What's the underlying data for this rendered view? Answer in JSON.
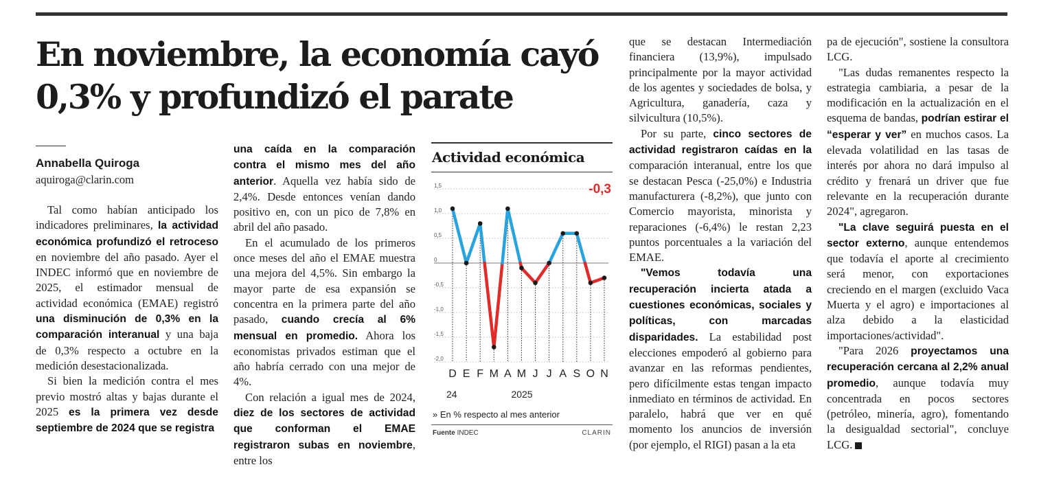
{
  "article": {
    "headline": "En noviembre, la economía cayó 0,3% y profundizó el parate",
    "author": "Annabella Quiroga",
    "email": "aquiroga@clarin.com"
  },
  "body": {
    "p1": [
      {
        "t": "Tal como habían anticipado los indicadores preliminares, "
      },
      {
        "t": "la actividad económica profundizó el retroceso",
        "b": true
      },
      {
        "t": " en noviembre del año pasado. Ayer el INDEC informó que en noviembre de 2025, el estimador mensual de actividad económica (EMAE) registró "
      },
      {
        "t": "una disminución de 0,3% en la comparación interanual",
        "b": true
      },
      {
        "t": " y una baja de 0,3% respecto a octubre en la medición desestacionalizada."
      }
    ],
    "p2": [
      {
        "t": "Si bien la medición contra el mes previo mostró altas y bajas durante el 2025 "
      },
      {
        "t": "es la primera vez desde septiembre de 2024 que se registra una caída en la comparación contra el mismo mes del año anterior",
        "b": true
      },
      {
        "t": ". Aquella vez había sido de 2,4%. Desde entonces venían dando positivo en, con un pico de 7,8% en abril del año pasado."
      }
    ],
    "p3": [
      {
        "t": "En el acumulado de los primeros once meses del año el EMAE muestra una mejora del 4,5%. Sin embargo la mayor parte de esa expansión se concentra en la primera parte del año pasado, "
      },
      {
        "t": "cuando crecía al 6% mensual en promedio.",
        "b": true
      },
      {
        "t": " Ahora los economistas privados estiman que el año habría cerrado con una mejor de 4%."
      }
    ],
    "p4": [
      {
        "t": "Con relación a igual mes de 2024, "
      },
      {
        "t": "diez de los sectores de actividad que conforman el EMAE registraron subas en noviembre",
        "b": true
      },
      {
        "t": ", entre los que se destacan Intermediación financiera (13,9%), impulsado principalmente por la mayor actividad de los agentes y sociedades de bolsa, y Agricultura, ganadería, caza y silvicultura (10,5%)."
      }
    ],
    "p5": [
      {
        "t": "Por su parte, "
      },
      {
        "t": "cinco sectores de actividad registraron caídas en la",
        "b": true
      },
      {
        "t": " comparación interanual, entre los que se destacan Pesca (-25,0%) e Industria manufacturera (-8,2%), que junto con Comercio mayorista, minorista y reparaciones (-6,4%) le restan 2,23 puntos porcentuales a la variación del EMAE."
      }
    ],
    "p6": [
      {
        "t": "\"Vemos todavía una recuperación incierta atada a cuestiones económicas, sociales y políticas, con marcadas disparidades.",
        "b": true
      },
      {
        "t": " La estabilidad post elecciones empoderó al gobierno para avanzar en las reformas pendientes, pero difícilmente estas tengan impacto inmediato en términos de actividad. En paralelo, habrá que ver en qué momento los anuncios de inversión (por ejemplo, el RIGI) pasan a la etapa de ejecución\", sostiene la consultora LCG."
      }
    ],
    "p7": [
      {
        "t": "\"Las dudas remanentes respecto la estrategia cambiaria, a pesar de la modificación en la actualización en el esquema de bandas, "
      },
      {
        "t": "podrían estirar el “esperar y ver”",
        "b": true
      },
      {
        "t": " en muchos casos. La elevada volatilidad en las tasas de interés por ahora no dará impulso al crédito y frenará un driver que fue relevante en la recuperación durante 2024\", agregaron."
      }
    ],
    "p8": [
      {
        "t": "\"La clave seguirá puesta en el sector externo",
        "b": true
      },
      {
        "t": ", aunque entendemos que todavía el aporte al crecimiento será menor, con exportaciones creciendo en el margen (excluido Vaca Muerta y el agro) e importaciones al alza debido a la elasticidad importaciones/actividad\"."
      }
    ],
    "p9": [
      {
        "t": "\"Para 2026 "
      },
      {
        "t": "proyectamos una recuperación cercana al 2,2% anual promedio",
        "b": true
      },
      {
        "t": ", aunque todavía muy concentrada en pocos sectores (petróleo, minería, agro), fomentando la desigualdad sectorial\", concluye LCG."
      }
    ]
  },
  "chart": {
    "title": "Actividad económica",
    "highlight_label": "-0,3",
    "note": "» En % respecto al mes anterior",
    "source_label": "Fuente",
    "source_value": "INDEC",
    "brand": "CLARIN"
  },
  "chart_data": {
    "type": "line",
    "title": "Actividad económica",
    "subtitle": "En % respecto al mes anterior",
    "categories": [
      "D",
      "E",
      "F",
      "M",
      "A",
      "M",
      "J",
      "J",
      "A",
      "S",
      "O",
      "N"
    ],
    "year_labels": [
      {
        "index": 0,
        "label": "24"
      },
      {
        "index": 5,
        "label": "2025"
      }
    ],
    "values": [
      1.1,
      0.0,
      0.8,
      -1.7,
      1.1,
      -0.1,
      -0.4,
      0.0,
      0.6,
      0.6,
      -0.4,
      -0.3
    ],
    "yticks": [
      "1,5",
      "1,0",
      "0,5",
      "0",
      "-0,5",
      "-1,0",
      "-1,5",
      "-2,0"
    ],
    "ytick_values": [
      1.5,
      1.0,
      0.5,
      0,
      -0.5,
      -1.0,
      -1.5,
      -2.0
    ],
    "ylim": [
      -2.0,
      1.5
    ],
    "positive_color": "#29a3dd",
    "negative_color": "#e02b2b",
    "highlight_color": "#e02b2b",
    "xlabel": "",
    "ylabel": ""
  }
}
